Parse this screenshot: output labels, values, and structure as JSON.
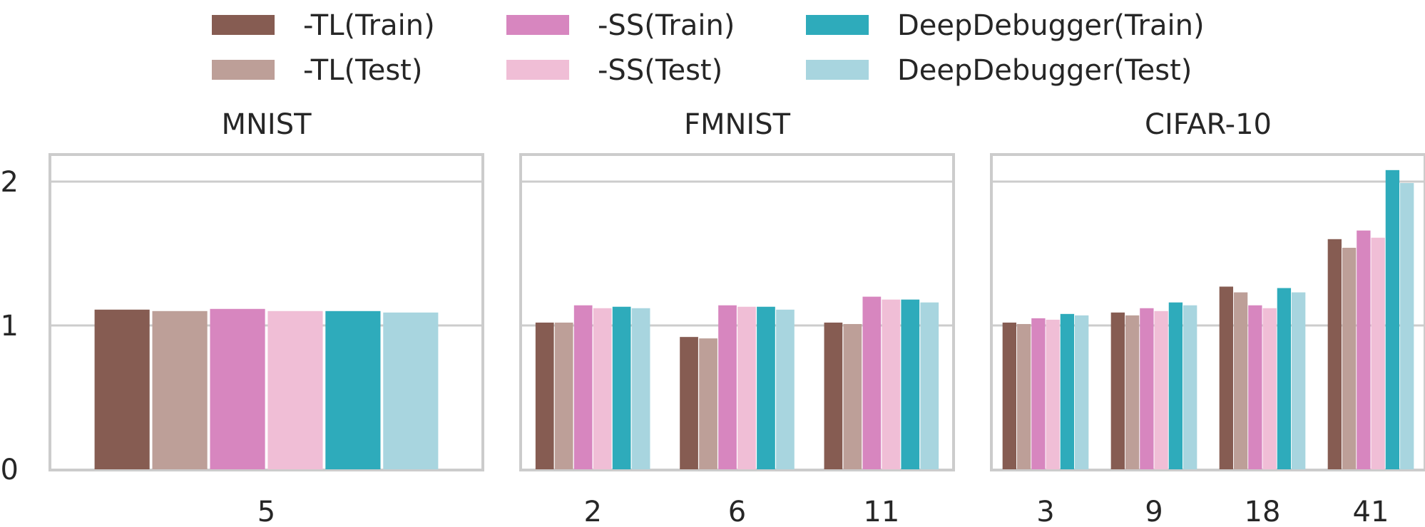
{
  "legend": {
    "entries": [
      {
        "label": "-TL(Train)",
        "color": "#865c52"
      },
      {
        "label": "-TL(Test)",
        "color": "#bd9f98"
      },
      {
        "label": "-SS(Train)",
        "color": "#d786bf"
      },
      {
        "label": "-SS(Test)",
        "color": "#f0bed6"
      },
      {
        "label": "DeepDebugger(Train)",
        "color": "#2eabbb"
      },
      {
        "label": "DeepDebugger(Test)",
        "color": "#a8d5df"
      }
    ]
  },
  "chart_data": [
    {
      "type": "bar",
      "title": "MNIST",
      "xlabel": "",
      "ylabel": "",
      "categories": [
        "5"
      ],
      "ylim": [
        0,
        2.2
      ],
      "yticks": [
        "0",
        "1",
        "2"
      ],
      "grid": true,
      "legend_position": "top",
      "series": [
        {
          "name": "-TL(Train)",
          "values": [
            1.11
          ]
        },
        {
          "name": "-TL(Test)",
          "values": [
            1.1
          ]
        },
        {
          "name": "-SS(Train)",
          "values": [
            1.115
          ]
        },
        {
          "name": "-SS(Test)",
          "values": [
            1.1
          ]
        },
        {
          "name": "DeepDebugger(Train)",
          "values": [
            1.1
          ]
        },
        {
          "name": "DeepDebugger(Test)",
          "values": [
            1.09
          ]
        }
      ]
    },
    {
      "type": "bar",
      "title": "FMNIST",
      "xlabel": "",
      "ylabel": "",
      "categories": [
        "2",
        "6",
        "11"
      ],
      "ylim": [
        0,
        2.2
      ],
      "yticks": [],
      "grid": true,
      "series": [
        {
          "name": "-TL(Train)",
          "values": [
            1.02,
            0.92,
            1.02
          ]
        },
        {
          "name": "-TL(Test)",
          "values": [
            1.02,
            0.91,
            1.01
          ]
        },
        {
          "name": "-SS(Train)",
          "values": [
            1.14,
            1.14,
            1.2
          ]
        },
        {
          "name": "-SS(Test)",
          "values": [
            1.12,
            1.13,
            1.18
          ]
        },
        {
          "name": "DeepDebugger(Train)",
          "values": [
            1.13,
            1.13,
            1.18
          ]
        },
        {
          "name": "DeepDebugger(Test)",
          "values": [
            1.12,
            1.11,
            1.16
          ]
        }
      ]
    },
    {
      "type": "bar",
      "title": "CIFAR-10",
      "xlabel": "",
      "ylabel": "",
      "categories": [
        "3",
        "9",
        "18",
        "41"
      ],
      "ylim": [
        0,
        2.2
      ],
      "yticks": [],
      "grid": true,
      "series": [
        {
          "name": "-TL(Train)",
          "values": [
            1.02,
            1.09,
            1.27,
            1.6
          ]
        },
        {
          "name": "-TL(Test)",
          "values": [
            1.01,
            1.07,
            1.23,
            1.54
          ]
        },
        {
          "name": "-SS(Train)",
          "values": [
            1.05,
            1.12,
            1.14,
            1.66
          ]
        },
        {
          "name": "-SS(Test)",
          "values": [
            1.04,
            1.1,
            1.12,
            1.61
          ]
        },
        {
          "name": "DeepDebugger(Train)",
          "values": [
            1.08,
            1.16,
            1.26,
            2.08
          ]
        },
        {
          "name": "DeepDebugger(Test)",
          "values": [
            1.07,
            1.14,
            1.23,
            1.99
          ]
        }
      ]
    }
  ]
}
